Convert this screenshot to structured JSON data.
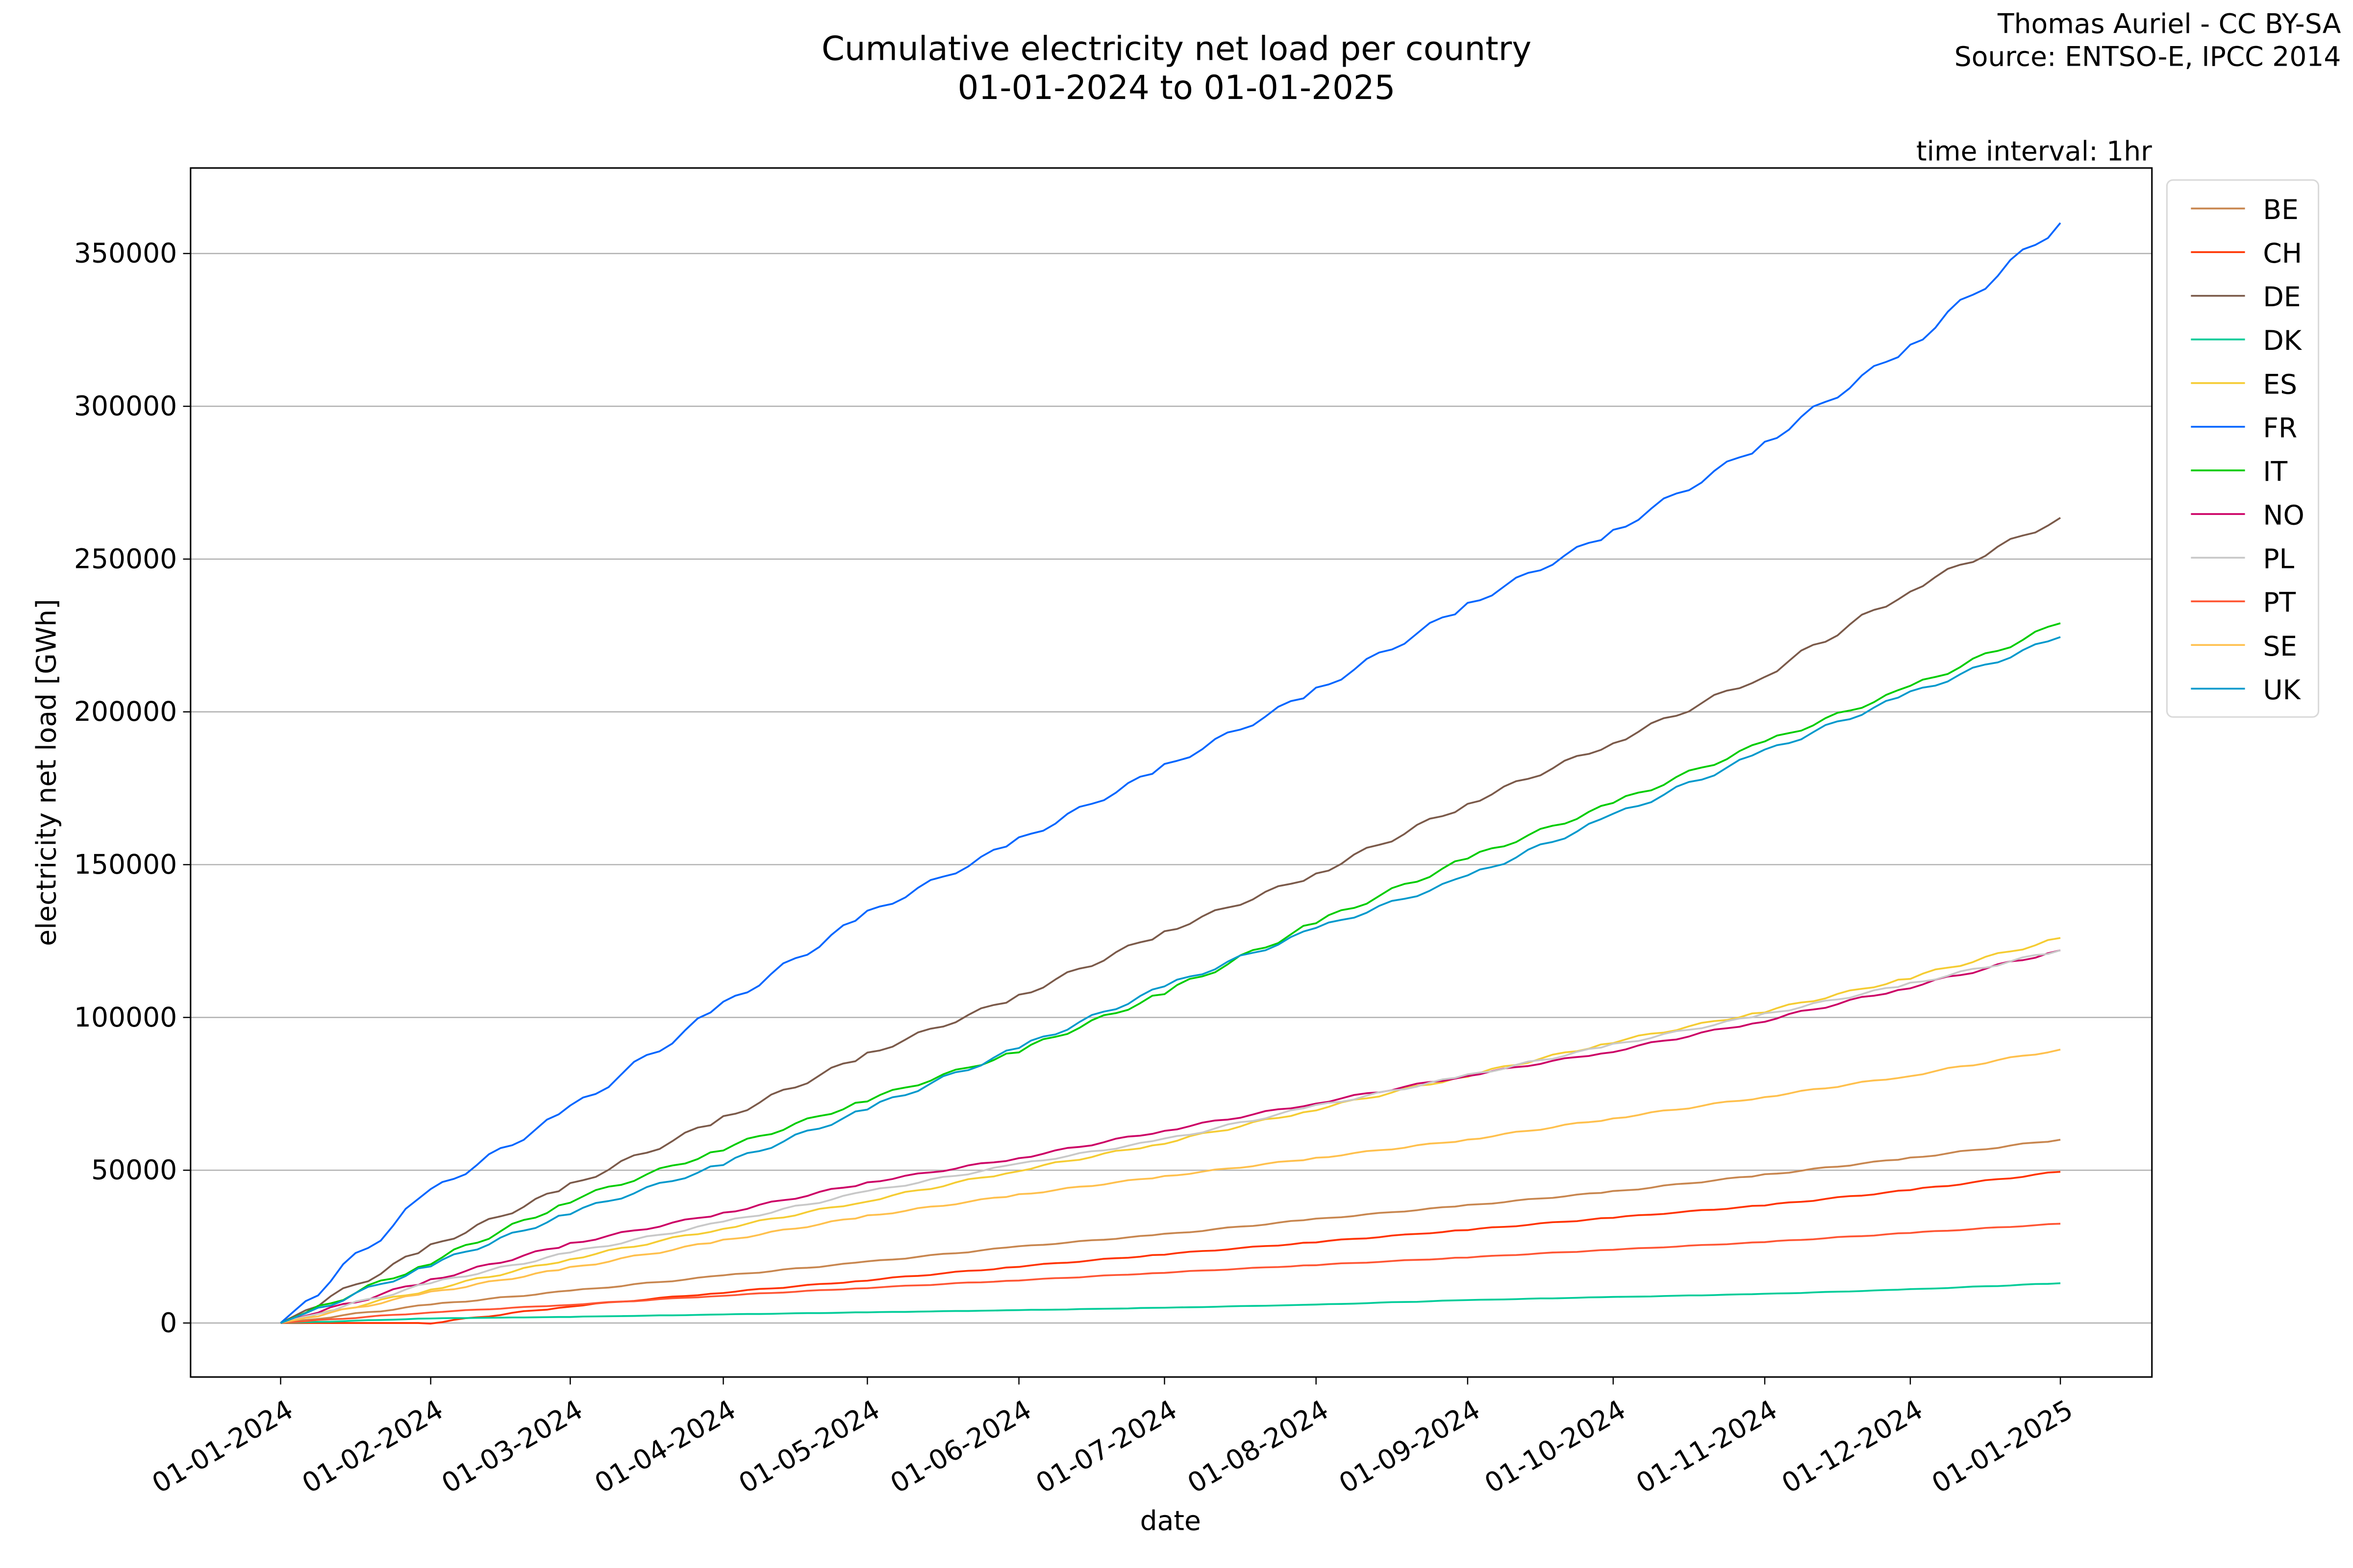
{
  "attribution": {
    "line1": "Thomas Auriel - CC BY-SA",
    "line2": "Source: ENTSO-E, IPCC 2014"
  },
  "chart_data": {
    "type": "line",
    "title": "Cumulative electricity net load per country",
    "subtitle": "01-01-2024 to 01-01-2025",
    "annotation": "time interval: 1hr",
    "xlabel": "date",
    "ylabel": "electricity net load [GWh]",
    "x": [
      "01-01-2024",
      "01-02-2024",
      "01-03-2024",
      "01-04-2024",
      "01-05-2024",
      "01-06-2024",
      "01-07-2024",
      "01-08-2024",
      "01-09-2024",
      "01-10-2024",
      "01-11-2024",
      "01-12-2024",
      "01-01-2025"
    ],
    "x_tick_labels": [
      "01-01-2024",
      "01-02-2024",
      "01-03-2024",
      "01-04-2024",
      "01-05-2024",
      "01-06-2024",
      "01-07-2024",
      "01-08-2024",
      "01-09-2024",
      "01-10-2024",
      "01-11-2024",
      "01-12-2024",
      "01-01-2025"
    ],
    "y_ticks": [
      0,
      50000,
      100000,
      150000,
      200000,
      250000,
      300000,
      350000
    ],
    "ylim": [
      -18000,
      378000
    ],
    "grid": "horizontal",
    "legend_position": "outside-right",
    "series": [
      {
        "name": "BE",
        "color": "#c8864f",
        "values": [
          0,
          6000,
          10500,
          15500,
          20000,
          25000,
          29000,
          34000,
          38500,
          43000,
          48500,
          54000,
          60000
        ]
      },
      {
        "name": "CH",
        "color": "#ff3300",
        "values": [
          0,
          0,
          5500,
          10000,
          14000,
          18500,
          22500,
          26500,
          30500,
          34500,
          38500,
          43500,
          49500
        ]
      },
      {
        "name": "DE",
        "color": "#7b5a4a",
        "values": [
          0,
          25000,
          45000,
          67000,
          88000,
          107000,
          128000,
          147000,
          170000,
          190000,
          212000,
          240000,
          263500
        ]
      },
      {
        "name": "DK",
        "color": "#00cc99",
        "values": [
          0,
          1500,
          2000,
          2800,
          3500,
          4200,
          5000,
          6000,
          7500,
          8500,
          9500,
          11000,
          13000
        ]
      },
      {
        "name": "ES",
        "color": "#f5cc33",
        "values": [
          0,
          11000,
          21000,
          31000,
          40000,
          50000,
          59000,
          70000,
          81000,
          92000,
          102000,
          113000,
          126000
        ]
      },
      {
        "name": "FR",
        "color": "#0066ff",
        "values": [
          0,
          43000,
          70000,
          104000,
          134000,
          158000,
          182000,
          207000,
          235000,
          259000,
          288000,
          320000,
          360000
        ]
      },
      {
        "name": "IT",
        "color": "#00cc00",
        "values": [
          0,
          20000,
          40000,
          57000,
          73000,
          89000,
          108000,
          131000,
          152000,
          170000,
          190000,
          208000,
          229000
        ]
      },
      {
        "name": "NO",
        "color": "#cc0066",
        "values": [
          0,
          14000,
          26000,
          36000,
          46000,
          54000,
          63000,
          72000,
          81000,
          89000,
          99000,
          110000,
          122000
        ]
      },
      {
        "name": "PL",
        "color": "#c8c8c8",
        "values": [
          0,
          13000,
          23000,
          33000,
          43000,
          52000,
          60000,
          71000,
          81000,
          91000,
          101000,
          111000,
          122000
        ]
      },
      {
        "name": "PT",
        "color": "#ff5533",
        "values": [
          0,
          3500,
          6000,
          9000,
          11500,
          14000,
          16500,
          19000,
          21500,
          24000,
          26500,
          29500,
          32500
        ]
      },
      {
        "name": "SE",
        "color": "#ffc04d",
        "values": [
          0,
          10000,
          18000,
          27000,
          35000,
          42000,
          48000,
          54000,
          60000,
          67000,
          74000,
          81000,
          89500
        ]
      },
      {
        "name": "UK",
        "color": "#0099cc",
        "values": [
          0,
          19000,
          36000,
          52000,
          70000,
          90000,
          110000,
          129000,
          146000,
          166000,
          187000,
          206000,
          224500
        ]
      }
    ]
  }
}
